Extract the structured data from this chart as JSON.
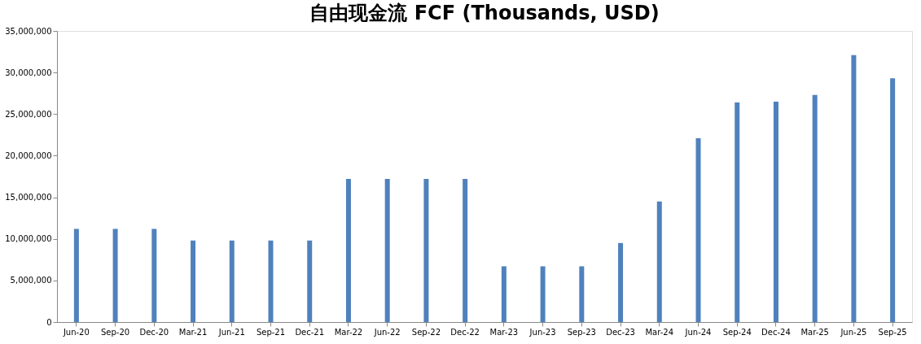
{
  "chart_data": {
    "type": "bar",
    "title": "自由现金流 FCF (Thousands, USD)",
    "categories": [
      "Jun-20",
      "Sep-20",
      "Dec-20",
      "Mar-21",
      "Jun-21",
      "Sep-21",
      "Dec-21",
      "Mar-22",
      "Jun-22",
      "Sep-22",
      "Dec-22",
      "Mar-23",
      "Jun-23",
      "Sep-23",
      "Dec-23",
      "Mar-24",
      "Jun-24",
      "Sep-24",
      "Dec-24",
      "Mar-25",
      "Jun-25",
      "Sep-25"
    ],
    "values": [
      11200000,
      11200000,
      11200000,
      9800000,
      9800000,
      9800000,
      9800000,
      17200000,
      17200000,
      17200000,
      17200000,
      6700000,
      6700000,
      6700000,
      9500000,
      14500000,
      22100000,
      26400000,
      26500000,
      27300000,
      32100000,
      29300000
    ],
    "color": "#4f81bd",
    "ylim": [
      0,
      35000000
    ],
    "yticks": [
      {
        "value": 0,
        "label": "0"
      },
      {
        "value": 5000000,
        "label": "5,000,000"
      },
      {
        "value": 10000000,
        "label": "10,000,000"
      },
      {
        "value": 15000000,
        "label": "15,000,000"
      },
      {
        "value": 20000000,
        "label": "20,000,000"
      },
      {
        "value": 25000000,
        "label": "25,000,000"
      },
      {
        "value": 30000000,
        "label": "30,000,000"
      },
      {
        "value": 35000000,
        "label": "35,000,000"
      }
    ],
    "grid": false
  }
}
